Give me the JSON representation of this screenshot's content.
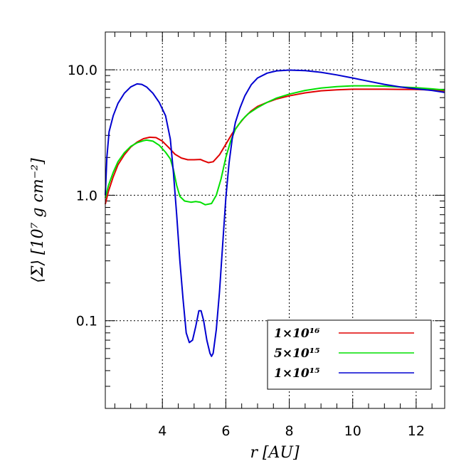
{
  "chart_data": {
    "type": "line",
    "title": "",
    "xlabel": "r   [AU]",
    "ylabel": "⟨Σ⟩   [10⁷ g cm⁻²]",
    "xlim": [
      2.2,
      12.9
    ],
    "ylim": [
      0.02,
      20
    ],
    "y_scale": "log",
    "grid": true,
    "legend_position": "bottom-right",
    "x_ticks": [
      4,
      6,
      8,
      10,
      12
    ],
    "x_tick_labels": [
      "4",
      "6",
      "8",
      "10",
      "12"
    ],
    "y_ticks": [
      0.1,
      1.0,
      10.0
    ],
    "y_tick_labels": [
      "0.1",
      "1.0",
      "10.0"
    ],
    "series": [
      {
        "name": "1×10¹⁶",
        "color": "#e00000",
        "points": [
          [
            2.2,
            0.85
          ],
          [
            2.3,
            1.08
          ],
          [
            2.45,
            1.4
          ],
          [
            2.6,
            1.75
          ],
          [
            2.8,
            2.1
          ],
          [
            3.0,
            2.42
          ],
          [
            3.2,
            2.65
          ],
          [
            3.4,
            2.82
          ],
          [
            3.6,
            2.9
          ],
          [
            3.8,
            2.88
          ],
          [
            4.0,
            2.7
          ],
          [
            4.2,
            2.4
          ],
          [
            4.4,
            2.12
          ],
          [
            4.6,
            1.98
          ],
          [
            4.8,
            1.92
          ],
          [
            5.0,
            1.92
          ],
          [
            5.2,
            1.93
          ],
          [
            5.3,
            1.88
          ],
          [
            5.45,
            1.82
          ],
          [
            5.6,
            1.85
          ],
          [
            5.8,
            2.1
          ],
          [
            6.0,
            2.55
          ],
          [
            6.2,
            3.1
          ],
          [
            6.4,
            3.65
          ],
          [
            6.6,
            4.2
          ],
          [
            6.8,
            4.7
          ],
          [
            7.0,
            5.1
          ],
          [
            7.3,
            5.5
          ],
          [
            7.6,
            5.85
          ],
          [
            8.0,
            6.2
          ],
          [
            8.5,
            6.55
          ],
          [
            9.0,
            6.8
          ],
          [
            9.5,
            6.92
          ],
          [
            10.0,
            7.0
          ],
          [
            10.5,
            7.0
          ],
          [
            11.0,
            7.0
          ],
          [
            11.5,
            6.98
          ],
          [
            12.0,
            6.96
          ],
          [
            12.5,
            6.9
          ],
          [
            12.9,
            6.8
          ]
        ]
      },
      {
        "name": "5×10¹⁵",
        "color": "#00e000",
        "points": [
          [
            2.2,
            0.95
          ],
          [
            2.3,
            1.2
          ],
          [
            2.45,
            1.52
          ],
          [
            2.6,
            1.85
          ],
          [
            2.8,
            2.18
          ],
          [
            3.0,
            2.45
          ],
          [
            3.2,
            2.62
          ],
          [
            3.4,
            2.72
          ],
          [
            3.5,
            2.75
          ],
          [
            3.7,
            2.7
          ],
          [
            3.9,
            2.5
          ],
          [
            4.1,
            2.2
          ],
          [
            4.25,
            1.95
          ],
          [
            4.35,
            1.6
          ],
          [
            4.45,
            1.2
          ],
          [
            4.55,
            0.98
          ],
          [
            4.7,
            0.9
          ],
          [
            4.9,
            0.88
          ],
          [
            5.05,
            0.89
          ],
          [
            5.2,
            0.88
          ],
          [
            5.35,
            0.84
          ],
          [
            5.55,
            0.86
          ],
          [
            5.7,
            1.0
          ],
          [
            5.85,
            1.35
          ],
          [
            6.0,
            2.0
          ],
          [
            6.15,
            2.7
          ],
          [
            6.3,
            3.35
          ],
          [
            6.5,
            3.95
          ],
          [
            6.7,
            4.45
          ],
          [
            7.0,
            5.0
          ],
          [
            7.3,
            5.5
          ],
          [
            7.6,
            5.95
          ],
          [
            8.0,
            6.4
          ],
          [
            8.5,
            6.85
          ],
          [
            9.0,
            7.15
          ],
          [
            9.5,
            7.35
          ],
          [
            10.0,
            7.45
          ],
          [
            10.5,
            7.45
          ],
          [
            11.0,
            7.4
          ],
          [
            11.5,
            7.3
          ],
          [
            12.0,
            7.2
          ],
          [
            12.5,
            7.05
          ],
          [
            12.9,
            6.9
          ]
        ]
      },
      {
        "name": "1×10¹⁵",
        "color": "#0000d0",
        "points": [
          [
            2.2,
            1.0
          ],
          [
            2.25,
            2.0
          ],
          [
            2.32,
            3.2
          ],
          [
            2.45,
            4.3
          ],
          [
            2.6,
            5.4
          ],
          [
            2.8,
            6.5
          ],
          [
            3.0,
            7.3
          ],
          [
            3.2,
            7.72
          ],
          [
            3.35,
            7.65
          ],
          [
            3.5,
            7.3
          ],
          [
            3.7,
            6.5
          ],
          [
            3.9,
            5.5
          ],
          [
            4.1,
            4.3
          ],
          [
            4.25,
            2.8
          ],
          [
            4.35,
            1.5
          ],
          [
            4.45,
            0.7
          ],
          [
            4.55,
            0.3
          ],
          [
            4.65,
            0.15
          ],
          [
            4.75,
            0.08
          ],
          [
            4.85,
            0.067
          ],
          [
            4.95,
            0.07
          ],
          [
            5.05,
            0.09
          ],
          [
            5.15,
            0.12
          ],
          [
            5.22,
            0.12
          ],
          [
            5.3,
            0.1
          ],
          [
            5.4,
            0.07
          ],
          [
            5.5,
            0.055
          ],
          [
            5.55,
            0.052
          ],
          [
            5.6,
            0.055
          ],
          [
            5.7,
            0.085
          ],
          [
            5.8,
            0.17
          ],
          [
            5.9,
            0.4
          ],
          [
            6.0,
            0.95
          ],
          [
            6.1,
            1.8
          ],
          [
            6.2,
            2.8
          ],
          [
            6.3,
            3.8
          ],
          [
            6.45,
            5.0
          ],
          [
            6.6,
            6.2
          ],
          [
            6.8,
            7.6
          ],
          [
            7.0,
            8.6
          ],
          [
            7.3,
            9.4
          ],
          [
            7.6,
            9.8
          ],
          [
            8.0,
            9.95
          ],
          [
            8.5,
            9.85
          ],
          [
            9.0,
            9.55
          ],
          [
            9.5,
            9.1
          ],
          [
            10.0,
            8.6
          ],
          [
            10.5,
            8.1
          ],
          [
            11.0,
            7.65
          ],
          [
            11.5,
            7.3
          ],
          [
            12.0,
            7.05
          ],
          [
            12.5,
            6.85
          ],
          [
            12.9,
            6.6
          ]
        ]
      }
    ]
  }
}
